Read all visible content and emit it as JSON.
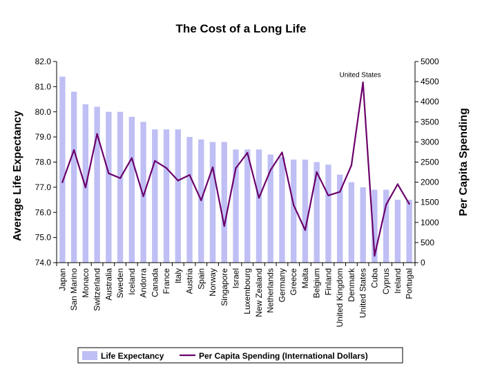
{
  "chart_data": {
    "type": "bar",
    "title": "The Cost of a Long Life",
    "categories": [
      "Japan",
      "San Marino",
      "Monaco",
      "Switzerland",
      "Australia",
      "Sweden",
      "Iceland",
      "Andorra",
      "Canada",
      "France",
      "Italy",
      "Austria",
      "Spain",
      "Norway",
      "Singapore",
      "Israel",
      "Luxembourg",
      "New Zealand",
      "Netherlands",
      "Germany",
      "Greece",
      "Malta",
      "Belgium",
      "Finland",
      "United Kingdom",
      "Denmark",
      "United States",
      "Cuba",
      "Cyprus",
      "Ireland",
      "Portugal"
    ],
    "series": [
      {
        "name": "Life Expectancy",
        "type": "bar",
        "axis": "left",
        "color": "#bfbff5",
        "values": [
          81.4,
          80.8,
          80.3,
          80.2,
          80.0,
          80.0,
          79.8,
          79.6,
          79.3,
          79.3,
          79.3,
          79.0,
          78.9,
          78.8,
          78.8,
          78.5,
          78.5,
          78.5,
          78.3,
          78.2,
          78.1,
          78.1,
          78.0,
          77.9,
          77.5,
          77.2,
          77.0,
          76.9,
          76.9,
          76.5,
          76.5
        ]
      },
      {
        "name": "Per Capita Spending (International Dollars)",
        "type": "line",
        "axis": "right",
        "color": "#6a006a",
        "values": [
          2000,
          2800,
          1870,
          3200,
          2220,
          2100,
          2600,
          1650,
          2530,
          2350,
          2040,
          2180,
          1550,
          2370,
          910,
          2350,
          2730,
          1610,
          2300,
          2740,
          1430,
          810,
          2250,
          1670,
          1760,
          2420,
          4480,
          170,
          1440,
          1950,
          1460
        ]
      }
    ],
    "ylabel": "Average Life Expectancy",
    "y2label": "Per Capita Spending",
    "ylim": [
      74.0,
      82.0
    ],
    "y2lim": [
      0,
      5000
    ],
    "yticks": [
      "74.0",
      "75.0",
      "76.0",
      "77.0",
      "78.0",
      "79.0",
      "80.0",
      "81.0",
      "82.0"
    ],
    "y2ticks": [
      "0",
      "500",
      "1000",
      "1500",
      "2000",
      "2500",
      "3000",
      "3500",
      "4000",
      "4500",
      "5000"
    ],
    "annotation": {
      "text": "United States",
      "category": "United States"
    },
    "legend_position": "bottom",
    "grid": false
  }
}
